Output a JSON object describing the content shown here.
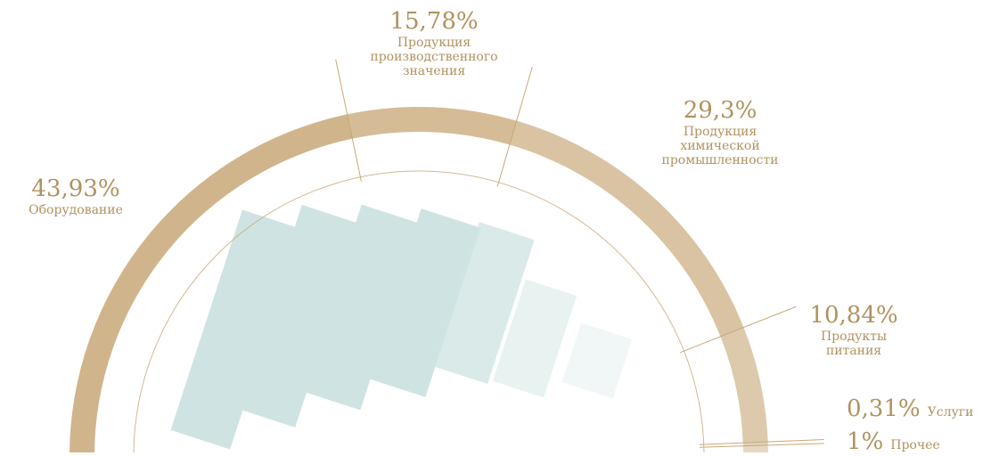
{
  "chart_data": {
    "type": "pie",
    "categories": [
      "Оборудование",
      "Продукция производственного значения",
      "Продукция химической промышленности",
      "Продукты питания",
      "Услуги",
      "Прочее"
    ],
    "values": [
      43.93,
      15.78,
      29.3,
      10.84,
      0.31,
      1
    ],
    "value_labels": [
      "43,93%",
      "15,78%",
      "29,3%",
      "10,84%",
      "0,31%",
      "1%"
    ],
    "color": "#c8a878"
  }
}
